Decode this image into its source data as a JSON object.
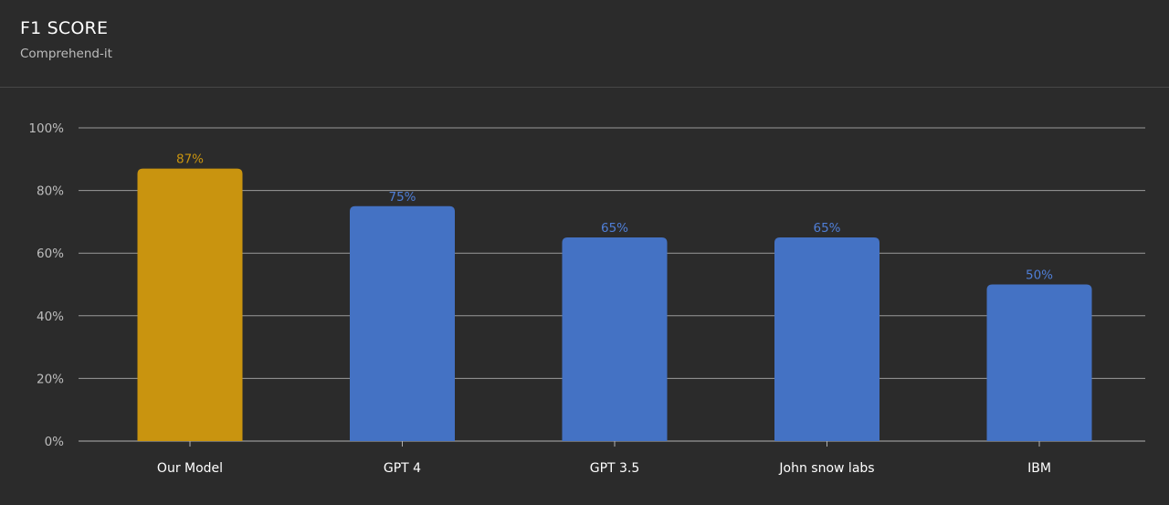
{
  "header": {
    "title": "F1 SCORE",
    "subtitle": "Comprehend-it"
  },
  "colors": {
    "background": "#2b2b2b",
    "highlight_bar": "#c9940f",
    "default_bar": "#4472c4",
    "gridline": "#9a9a9a",
    "highlight_label": "#c9940f",
    "default_label": "#4f7ed6"
  },
  "chart_data": {
    "type": "bar",
    "title": "F1 SCORE",
    "subtitle": "Comprehend-it",
    "categories": [
      "Our Model",
      "GPT 4",
      "GPT 3.5",
      "John snow labs",
      "IBM"
    ],
    "values": [
      87,
      75,
      65,
      65,
      50
    ],
    "data_labels": [
      "87%",
      "75%",
      "65%",
      "65%",
      "50%"
    ],
    "highlighted_index": 0,
    "xlabel": "",
    "ylabel": "",
    "ylim": [
      0,
      100
    ],
    "y_ticks": [
      0,
      20,
      40,
      60,
      80,
      100
    ],
    "y_tick_labels": [
      "0%",
      "20%",
      "40%",
      "60%",
      "80%",
      "100%"
    ],
    "grid": true,
    "legend": "none"
  }
}
